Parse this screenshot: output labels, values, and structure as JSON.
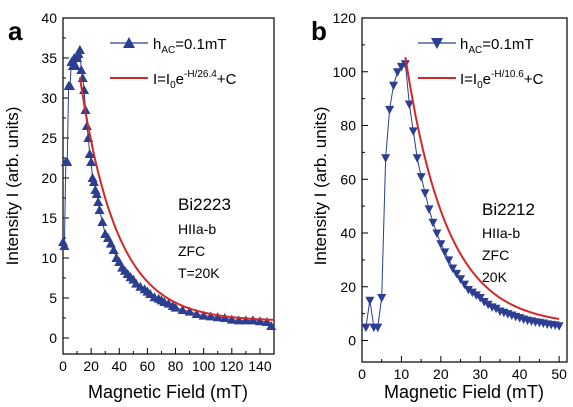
{
  "chart_data": [
    {
      "panel_label": "a",
      "type": "scatter",
      "xlabel": "Magnetic Field (mT)",
      "ylabel": "Intensity I (arb. units)",
      "xlim": [
        0,
        150
      ],
      "ylim": [
        -2,
        40
      ],
      "xticks": [
        0,
        20,
        40,
        60,
        80,
        100,
        120,
        140
      ],
      "yticks": [
        0,
        5,
        10,
        15,
        20,
        25,
        30,
        35,
        40
      ],
      "legend": {
        "position": "top-right",
        "data_prefix": "h",
        "data_sub": "AC",
        "data_suffix": "=0.1mT",
        "fit_prefix": "I=I",
        "fit_sub": "0",
        "fit_base": "e",
        "fit_sup": "-H/26.4",
        "fit_suffix": "+C"
      },
      "annotation": [
        "Bi2223",
        "HIIa-b",
        "ZFC",
        "T=20K"
      ],
      "series": [
        {
          "marker": "triangle-up",
          "color": "#2c3e8f",
          "x": [
            0,
            1,
            2,
            3,
            4,
            5,
            6,
            7,
            8,
            9,
            10,
            11,
            12,
            13,
            14,
            15,
            16,
            17,
            18,
            19,
            20,
            21,
            22,
            23,
            24,
            25,
            26,
            28,
            30,
            32,
            34,
            36,
            38,
            40,
            42,
            44,
            46,
            48,
            50,
            52,
            55,
            58,
            60,
            62,
            65,
            68,
            70,
            72,
            75,
            78,
            80,
            85,
            90,
            95,
            100,
            105,
            110,
            115,
            120,
            125,
            130,
            135,
            140,
            145,
            148
          ],
          "y": [
            12,
            11.5,
            22,
            22,
            31.5,
            31.5,
            34.5,
            34,
            35,
            34,
            35,
            35.5,
            36,
            33.5,
            32.5,
            31,
            28.5,
            26.5,
            25,
            23,
            22,
            20,
            19.5,
            18.5,
            18,
            17,
            16,
            14.5,
            13,
            12.5,
            11.8,
            11,
            10,
            9.5,
            8.8,
            8.4,
            8,
            7.6,
            7.3,
            6.8,
            6.4,
            6.1,
            5.8,
            5.5,
            5.1,
            4.9,
            4.7,
            4.5,
            4.3,
            4,
            3.8,
            3.5,
            3.3,
            3,
            2.8,
            2.7,
            2.6,
            2.5,
            2.3,
            2.2,
            2.2,
            2.2,
            2.1,
            2,
            1.5
          ]
        }
      ],
      "fit": {
        "name": "exponential fit",
        "color": "#d62728",
        "x0": 12,
        "x1": 150,
        "I0": 48,
        "H": 26.4,
        "C": 2.1
      }
    },
    {
      "panel_label": "b",
      "type": "scatter",
      "xlabel": "Magnetic Field (mT)",
      "ylabel": "Intensity I (arb. units)",
      "xlim": [
        0,
        52
      ],
      "ylim": [
        -8,
        120
      ],
      "xticks": [
        0,
        10,
        20,
        30,
        40,
        50
      ],
      "yticks": [
        0,
        20,
        40,
        60,
        80,
        100,
        120
      ],
      "legend": {
        "position": "top-right",
        "data_prefix": "h",
        "data_sub": "AC",
        "data_suffix": "=0.1mT",
        "fit_prefix": "I=I",
        "fit_sub": "0",
        "fit_base": "e",
        "fit_sup": "-H/10.6",
        "fit_suffix": "+C"
      },
      "annotation": [
        "Bi2212",
        "HIIa-b",
        "ZFC",
        "20K"
      ],
      "series": [
        {
          "marker": "triangle-down",
          "color": "#2c3e8f",
          "x": [
            1,
            2,
            3,
            4,
            5,
            6,
            7,
            8,
            9,
            10,
            11,
            12,
            13,
            14,
            15,
            16,
            17,
            18,
            19,
            20,
            21,
            22,
            23,
            24,
            25,
            26,
            27,
            28,
            29,
            30,
            31,
            32,
            33,
            34,
            35,
            36,
            37,
            38,
            39,
            40,
            41,
            42,
            43,
            44,
            45,
            46,
            47,
            48,
            49,
            50
          ],
          "y": [
            5,
            15,
            5,
            5,
            16,
            68,
            86,
            95,
            100,
            102,
            103,
            88,
            78,
            68,
            61,
            55,
            49,
            44,
            40,
            36,
            33,
            30,
            27,
            25,
            23,
            21,
            19,
            18,
            17,
            16,
            14.5,
            13.5,
            12.5,
            12,
            11,
            10.5,
            10,
            9.5,
            9,
            8.5,
            8,
            7.6,
            7.3,
            7,
            6.8,
            6.5,
            6.2,
            6,
            5.8,
            5.5
          ]
        }
      ],
      "fit": {
        "name": "exponential fit",
        "color": "#d62728",
        "x0": 11,
        "x1": 50,
        "I0": 282,
        "H": 10.6,
        "C": 5.5
      }
    }
  ]
}
